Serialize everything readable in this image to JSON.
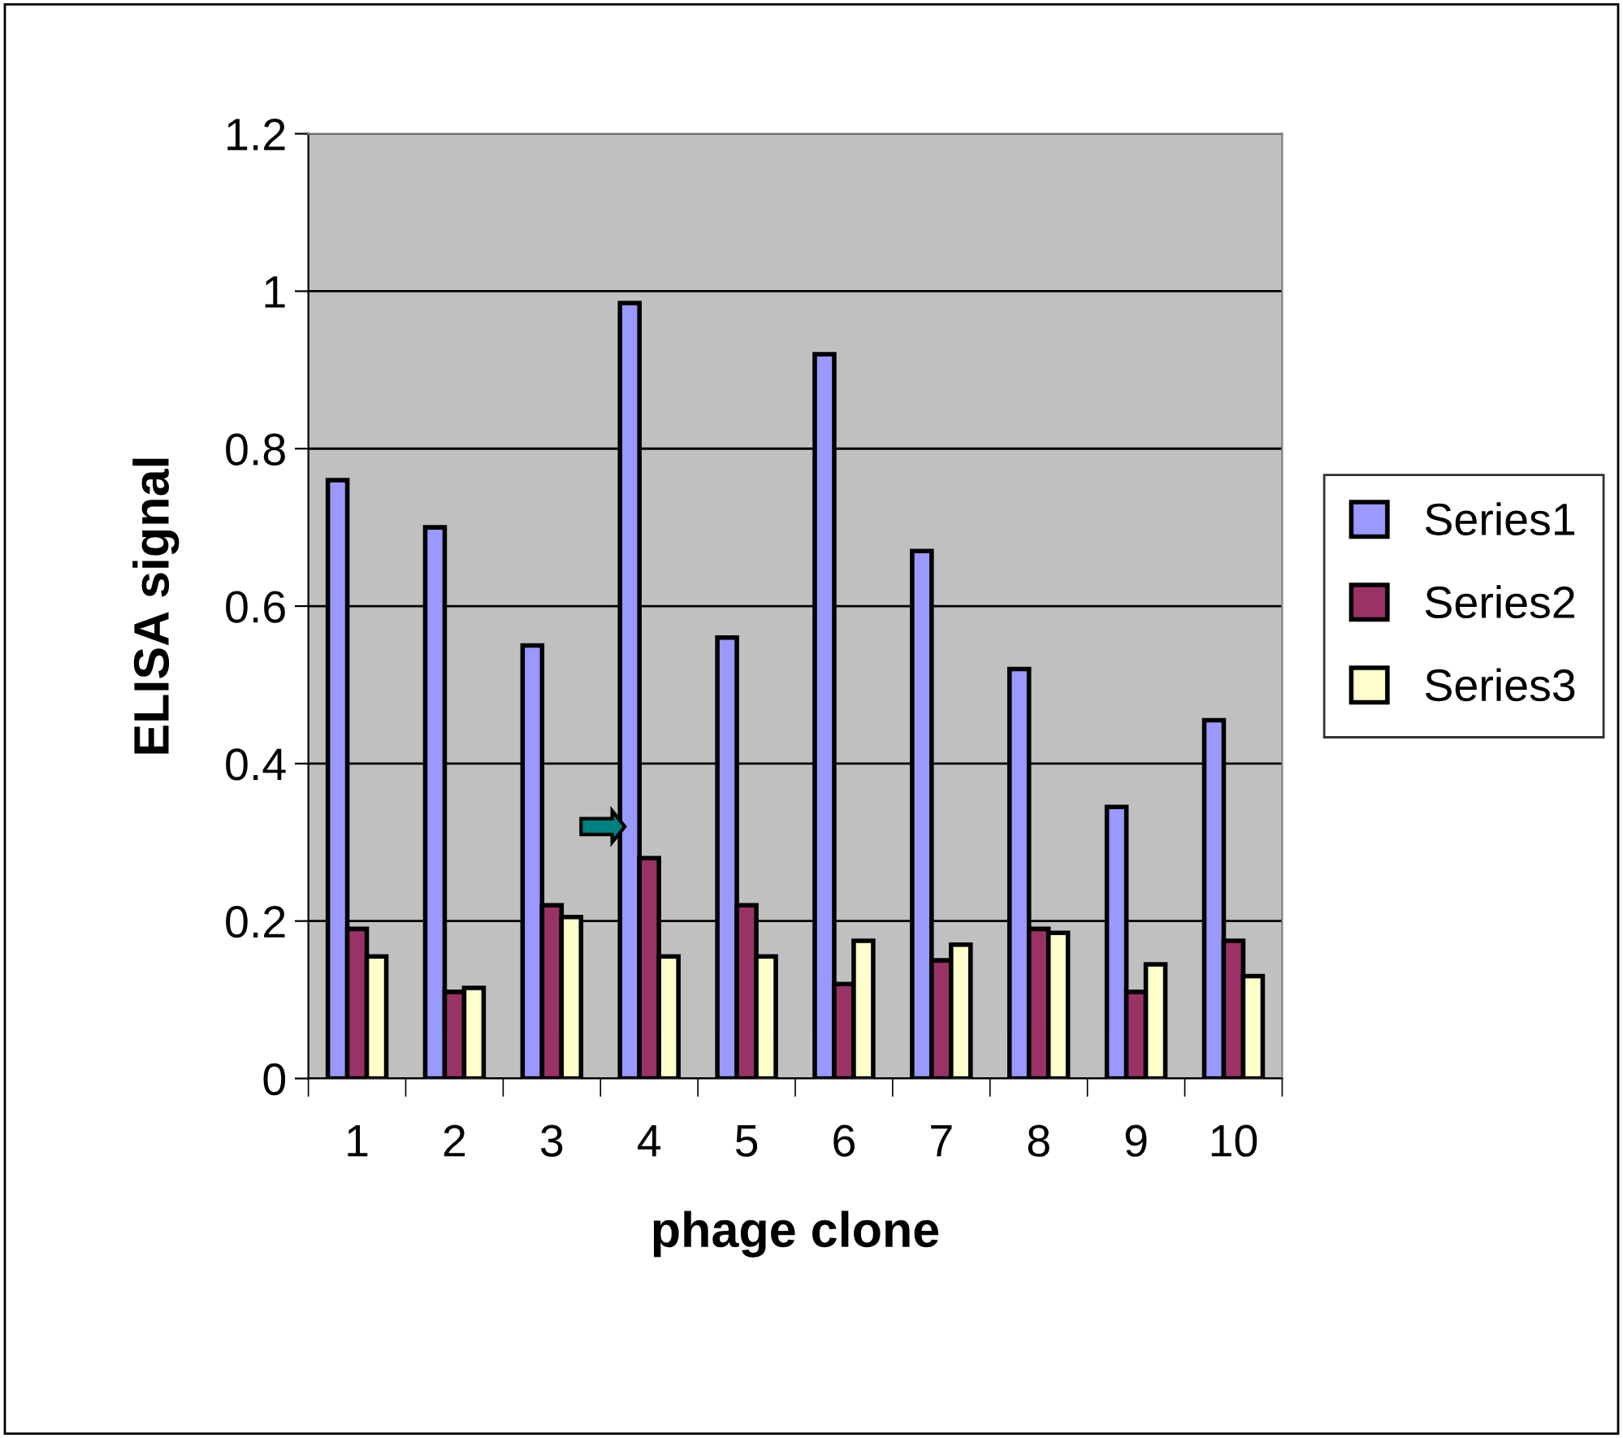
{
  "chart_data": {
    "type": "bar",
    "xlabel": "phage clone",
    "ylabel": "ELISA signal",
    "categories": [
      "1",
      "2",
      "3",
      "4",
      "5",
      "6",
      "7",
      "8",
      "9",
      "10"
    ],
    "series": [
      {
        "name": "Series1",
        "color": "#9999ff",
        "values": [
          0.76,
          0.7,
          0.55,
          0.985,
          0.56,
          0.92,
          0.67,
          0.52,
          0.345,
          0.455
        ]
      },
      {
        "name": "Series2",
        "color": "#993366",
        "values": [
          0.19,
          0.11,
          0.22,
          0.28,
          0.22,
          0.12,
          0.15,
          0.19,
          0.11,
          0.175
        ]
      },
      {
        "name": "Series3",
        "color": "#ffffcc",
        "values": [
          0.155,
          0.115,
          0.205,
          0.155,
          0.155,
          0.175,
          0.17,
          0.185,
          0.145,
          0.13
        ]
      }
    ],
    "ylim": [
      0,
      1.2
    ],
    "yticks": [
      0,
      0.2,
      0.4,
      0.6,
      0.8,
      1,
      1.2
    ],
    "grid": "y",
    "legend": "right"
  }
}
